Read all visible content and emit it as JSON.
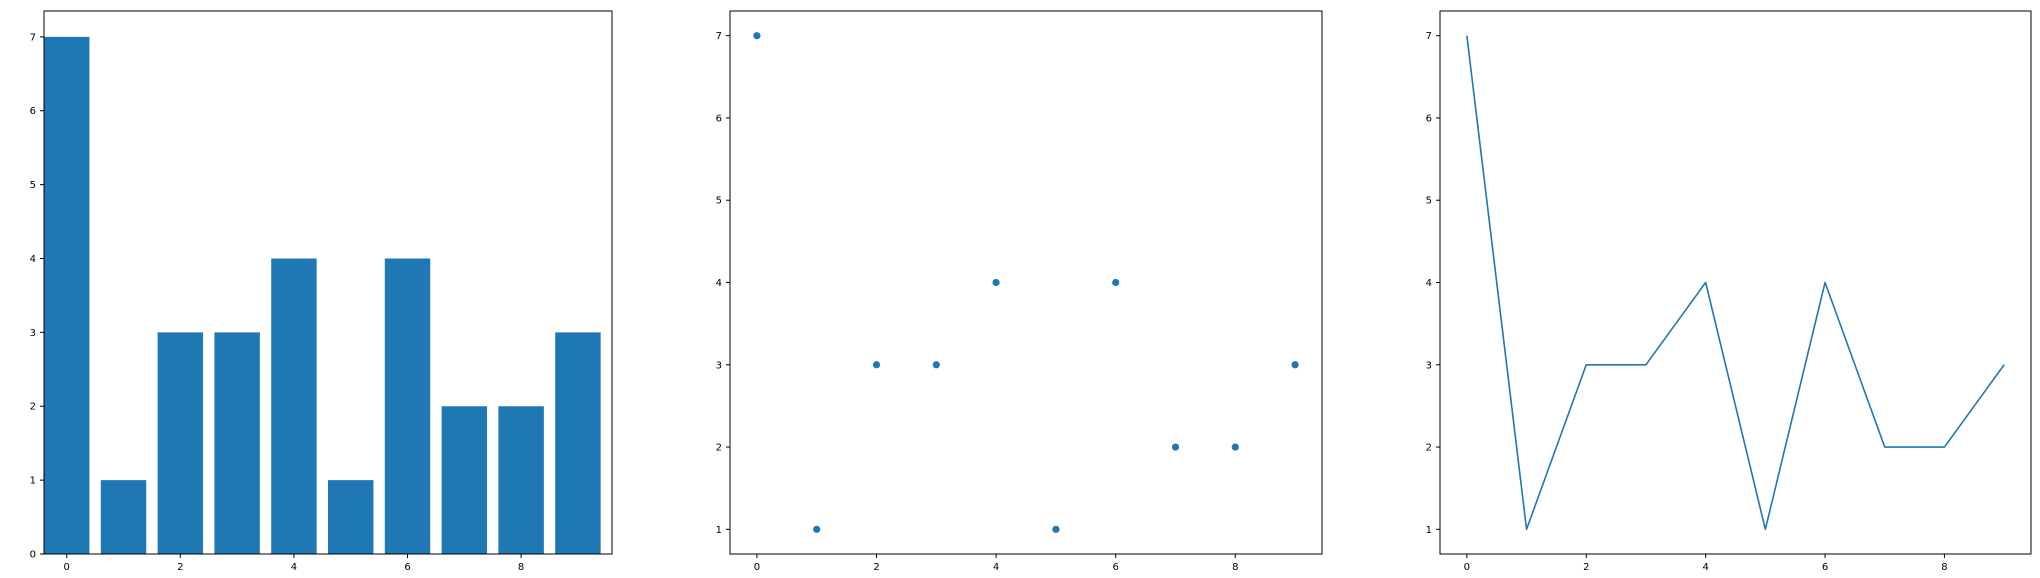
{
  "colors": {
    "series": "#1f77b4",
    "axes": "#000000",
    "background": "#ffffff"
  },
  "chart_data": [
    {
      "type": "bar",
      "x": [
        0,
        1,
        2,
        3,
        4,
        5,
        6,
        7,
        8,
        9
      ],
      "values": [
        7,
        1,
        3,
        3,
        4,
        1,
        4,
        2,
        2,
        3
      ],
      "xlim": [
        -0.4,
        9.6
      ],
      "ylim": [
        0,
        7.35
      ],
      "xticks": [
        "0",
        "2",
        "4",
        "6",
        "8"
      ],
      "yticks": [
        "0",
        "1",
        "2",
        "3",
        "4",
        "5",
        "6",
        "7"
      ],
      "grid": false
    },
    {
      "type": "scatter",
      "x": [
        0,
        1,
        2,
        3,
        4,
        5,
        6,
        7,
        8,
        9
      ],
      "values": [
        7,
        1,
        3,
        3,
        4,
        1,
        4,
        2,
        2,
        3
      ],
      "xlim": [
        -0.45,
        9.45
      ],
      "ylim": [
        0.7,
        7.3
      ],
      "xticks": [
        "0",
        "2",
        "4",
        "6",
        "8"
      ],
      "yticks": [
        "1",
        "2",
        "3",
        "4",
        "5",
        "6",
        "7"
      ],
      "grid": false
    },
    {
      "type": "line",
      "x": [
        0,
        1,
        2,
        3,
        4,
        5,
        6,
        7,
        8,
        9
      ],
      "values": [
        7,
        1,
        3,
        3,
        4,
        1,
        4,
        2,
        2,
        3
      ],
      "xlim": [
        -0.45,
        9.45
      ],
      "ylim": [
        0.7,
        7.3
      ],
      "xticks": [
        "0",
        "2",
        "4",
        "6",
        "8"
      ],
      "yticks": [
        "1",
        "2",
        "3",
        "4",
        "5",
        "6",
        "7"
      ],
      "grid": false
    }
  ]
}
